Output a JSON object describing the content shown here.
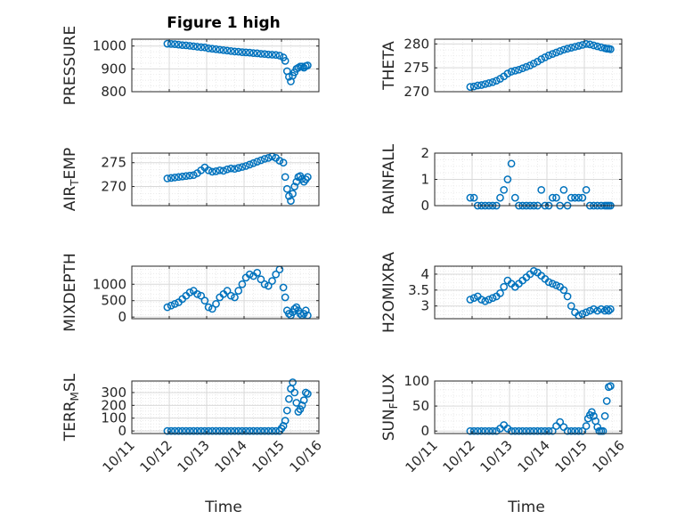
{
  "figure": {
    "title": "Figure 1 high"
  },
  "chart_data": [
    {
      "type": "scatter",
      "ylabel": "PRESSURE",
      "xlim": [
        0,
        5
      ],
      "ylim": [
        800,
        1030
      ],
      "yticks": [
        800,
        900,
        1000
      ],
      "x": [
        0.95,
        1.05,
        1.15,
        1.25,
        1.35,
        1.45,
        1.55,
        1.65,
        1.75,
        1.85,
        1.95,
        2.05,
        2.15,
        2.25,
        2.35,
        2.45,
        2.55,
        2.65,
        2.75,
        2.85,
        2.95,
        3.05,
        3.15,
        3.25,
        3.35,
        3.45,
        3.55,
        3.65,
        3.75,
        3.85,
        3.95,
        4.05,
        4.1,
        4.15,
        4.2,
        4.25,
        4.3,
        4.35,
        4.4,
        4.45,
        4.5,
        4.55,
        4.6,
        4.65,
        4.7
      ],
      "y": [
        1010,
        1009,
        1008,
        1006,
        1004,
        1003,
        1001,
        999,
        997,
        995,
        994,
        990,
        988,
        986,
        984,
        982,
        980,
        978,
        976,
        975,
        973,
        972,
        971,
        969,
        968,
        966,
        965,
        963,
        962,
        961,
        958,
        950,
        935,
        890,
        865,
        845,
        870,
        885,
        900,
        905,
        910,
        910,
        905,
        912,
        915
      ]
    },
    {
      "type": "scatter",
      "ylabel": "THETA",
      "xlim": [
        0,
        5
      ],
      "ylim": [
        270,
        281
      ],
      "yticks": [
        270,
        275,
        280
      ],
      "x": [
        0.95,
        1.05,
        1.15,
        1.25,
        1.35,
        1.45,
        1.55,
        1.65,
        1.75,
        1.85,
        1.95,
        2.05,
        2.15,
        2.25,
        2.35,
        2.45,
        2.55,
        2.65,
        2.75,
        2.85,
        2.95,
        3.05,
        3.15,
        3.25,
        3.35,
        3.45,
        3.55,
        3.65,
        3.75,
        3.85,
        3.95,
        4.05,
        4.15,
        4.25,
        4.35,
        4.45,
        4.55,
        4.6,
        4.65,
        4.7
      ],
      "y": [
        271,
        271.1,
        271.3,
        271.4,
        271.6,
        271.8,
        272,
        272.3,
        272.7,
        273.2,
        273.8,
        274.2,
        274.4,
        274.6,
        274.9,
        275.2,
        275.5,
        275.9,
        276.3,
        276.8,
        277.2,
        277.6,
        277.9,
        278.2,
        278.5,
        278.8,
        279,
        279.2,
        279.4,
        279.6,
        279.8,
        280,
        279.9,
        279.7,
        279.5,
        279.3,
        279.1,
        279,
        279,
        278.9
      ]
    },
    {
      "type": "scatter",
      "ylabel": "AIR_TEMP",
      "xlim": [
        0,
        5
      ],
      "ylim": [
        266,
        277
      ],
      "yticks": [
        270,
        275
      ],
      "x": [
        0.95,
        1.05,
        1.15,
        1.25,
        1.35,
        1.45,
        1.55,
        1.65,
        1.75,
        1.85,
        1.95,
        2.05,
        2.15,
        2.25,
        2.35,
        2.45,
        2.55,
        2.65,
        2.75,
        2.85,
        2.95,
        3.05,
        3.15,
        3.25,
        3.35,
        3.45,
        3.55,
        3.65,
        3.75,
        3.85,
        3.95,
        4.05,
        4.1,
        4.15,
        4.2,
        4.25,
        4.3,
        4.35,
        4.4,
        4.45,
        4.5,
        4.55,
        4.6,
        4.65,
        4.7
      ],
      "y": [
        271.7,
        271.8,
        271.9,
        272,
        272.1,
        272.2,
        272.3,
        272.4,
        272.8,
        273.4,
        274,
        273.4,
        273.1,
        273.2,
        273.4,
        273.3,
        273.6,
        273.8,
        273.7,
        273.9,
        274.1,
        274.3,
        274.6,
        274.9,
        275.2,
        275.5,
        275.8,
        276,
        276.3,
        276,
        275.4,
        275,
        272,
        269.5,
        268,
        267,
        268.5,
        270,
        271,
        272,
        272.2,
        271.6,
        271,
        271.5,
        272
      ]
    },
    {
      "type": "scatter",
      "ylabel": "RAINFALL",
      "xlim": [
        0,
        5
      ],
      "ylim": [
        0,
        2
      ],
      "yticks": [
        0,
        1,
        2
      ],
      "x": [
        0.95,
        1.05,
        1.15,
        1.25,
        1.35,
        1.45,
        1.55,
        1.65,
        1.75,
        1.85,
        1.95,
        2.05,
        2.15,
        2.25,
        2.35,
        2.45,
        2.55,
        2.65,
        2.75,
        2.85,
        2.95,
        3.05,
        3.15,
        3.25,
        3.35,
        3.45,
        3.55,
        3.65,
        3.75,
        3.85,
        3.95,
        4.05,
        4.15,
        4.25,
        4.35,
        4.45,
        4.55,
        4.6,
        4.65,
        4.7
      ],
      "y": [
        0.3,
        0.3,
        0,
        0,
        0,
        0,
        0,
        0,
        0.3,
        0.6,
        1,
        1.6,
        0.3,
        0,
        0,
        0,
        0,
        0,
        0,
        0.6,
        0,
        0,
        0.3,
        0.3,
        0,
        0.6,
        0,
        0.3,
        0.3,
        0.3,
        0.3,
        0.6,
        0,
        0,
        0,
        0,
        0,
        0,
        0,
        0
      ]
    },
    {
      "type": "scatter",
      "ylabel": "MIXDEPTH",
      "xlim": [
        0,
        5
      ],
      "ylim": [
        -50,
        1550
      ],
      "yticks": [
        0,
        500,
        1000
      ],
      "x": [
        0.95,
        1.05,
        1.15,
        1.25,
        1.35,
        1.45,
        1.55,
        1.65,
        1.75,
        1.85,
        1.95,
        2.05,
        2.15,
        2.25,
        2.35,
        2.45,
        2.55,
        2.65,
        2.75,
        2.85,
        2.95,
        3.05,
        3.15,
        3.25,
        3.35,
        3.45,
        3.55,
        3.65,
        3.75,
        3.85,
        3.95,
        4.05,
        4.1,
        4.15,
        4.2,
        4.25,
        4.3,
        4.35,
        4.4,
        4.45,
        4.5,
        4.55,
        4.6,
        4.65,
        4.7
      ],
      "y": [
        300,
        350,
        400,
        450,
        550,
        650,
        750,
        800,
        700,
        650,
        500,
        300,
        250,
        400,
        600,
        700,
        800,
        650,
        600,
        800,
        1000,
        1200,
        1300,
        1250,
        1350,
        1150,
        1000,
        950,
        1100,
        1300,
        1450,
        900,
        600,
        200,
        100,
        50,
        150,
        250,
        300,
        200,
        100,
        50,
        100,
        200,
        50
      ]
    },
    {
      "type": "scatter",
      "ylabel": "H2OMIXRA",
      "xlim": [
        0,
        5
      ],
      "ylim": [
        2.6,
        4.25
      ],
      "yticks": [
        3,
        3.5,
        4
      ],
      "x": [
        0.95,
        1.05,
        1.15,
        1.25,
        1.35,
        1.45,
        1.55,
        1.65,
        1.75,
        1.85,
        1.95,
        2.05,
        2.15,
        2.25,
        2.35,
        2.45,
        2.55,
        2.65,
        2.75,
        2.85,
        2.95,
        3.05,
        3.15,
        3.25,
        3.35,
        3.45,
        3.55,
        3.65,
        3.75,
        3.85,
        3.95,
        4.05,
        4.15,
        4.25,
        4.35,
        4.45,
        4.55,
        4.6,
        4.65,
        4.7
      ],
      "y": [
        3.2,
        3.25,
        3.3,
        3.2,
        3.15,
        3.2,
        3.25,
        3.3,
        3.4,
        3.6,
        3.8,
        3.7,
        3.6,
        3.7,
        3.8,
        3.9,
        4.0,
        4.1,
        4.05,
        3.95,
        3.85,
        3.75,
        3.7,
        3.65,
        3.6,
        3.5,
        3.3,
        3.0,
        2.8,
        2.7,
        2.75,
        2.8,
        2.85,
        2.9,
        2.85,
        2.9,
        2.85,
        2.9,
        2.85,
        2.9
      ]
    },
    {
      "type": "scatter",
      "ylabel": "TERR_MSL",
      "xlim": [
        0,
        5
      ],
      "ylim": [
        -20,
        390
      ],
      "yticks": [
        0,
        100,
        200,
        300
      ],
      "x": [
        0.95,
        1.05,
        1.15,
        1.25,
        1.35,
        1.45,
        1.55,
        1.65,
        1.75,
        1.85,
        1.95,
        2.05,
        2.15,
        2.25,
        2.35,
        2.45,
        2.55,
        2.65,
        2.75,
        2.85,
        2.95,
        3.05,
        3.15,
        3.25,
        3.35,
        3.45,
        3.55,
        3.65,
        3.75,
        3.85,
        3.95,
        4.0,
        4.05,
        4.1,
        4.15,
        4.2,
        4.25,
        4.3,
        4.35,
        4.4,
        4.45,
        4.5,
        4.55,
        4.6,
        4.65,
        4.7
      ],
      "y": [
        0,
        0,
        0,
        0,
        0,
        0,
        0,
        0,
        0,
        0,
        0,
        0,
        0,
        0,
        0,
        0,
        0,
        0,
        0,
        0,
        0,
        0,
        0,
        0,
        0,
        0,
        0,
        0,
        0,
        0,
        0,
        20,
        40,
        80,
        160,
        250,
        330,
        380,
        300,
        220,
        150,
        170,
        200,
        240,
        300,
        290
      ]
    },
    {
      "type": "scatter",
      "ylabel": "SUN_FLUX",
      "xlim": [
        0,
        5
      ],
      "ylim": [
        -5,
        100
      ],
      "yticks": [
        0,
        50,
        100
      ],
      "x": [
        0.95,
        1.05,
        1.15,
        1.25,
        1.35,
        1.45,
        1.55,
        1.65,
        1.75,
        1.85,
        1.95,
        2.05,
        2.15,
        2.25,
        2.35,
        2.45,
        2.55,
        2.65,
        2.75,
        2.85,
        2.95,
        3.05,
        3.15,
        3.25,
        3.35,
        3.45,
        3.55,
        3.65,
        3.75,
        3.85,
        3.95,
        4.05,
        4.1,
        4.15,
        4.2,
        4.25,
        4.3,
        4.35,
        4.4,
        4.45,
        4.5,
        4.55,
        4.6,
        4.65,
        4.7
      ],
      "y": [
        0,
        0,
        0,
        0,
        0,
        0,
        0,
        0,
        5,
        12,
        5,
        0,
        0,
        0,
        0,
        0,
        0,
        0,
        0,
        0,
        0,
        0,
        0,
        10,
        18,
        8,
        0,
        0,
        0,
        0,
        0,
        10,
        25,
        32,
        38,
        30,
        20,
        8,
        0,
        0,
        0,
        30,
        60,
        88,
        90
      ]
    }
  ],
  "xaxis": {
    "xlabel": "Time",
    "ticks": [
      0,
      1,
      2,
      3,
      4,
      5
    ],
    "ticklabels": [
      "10/11",
      "10/12",
      "10/13",
      "10/14",
      "10/15",
      "10/16"
    ]
  },
  "colors": {
    "marker": "#0072bd",
    "grid": "#e6e6e6",
    "axis": "#262626"
  }
}
